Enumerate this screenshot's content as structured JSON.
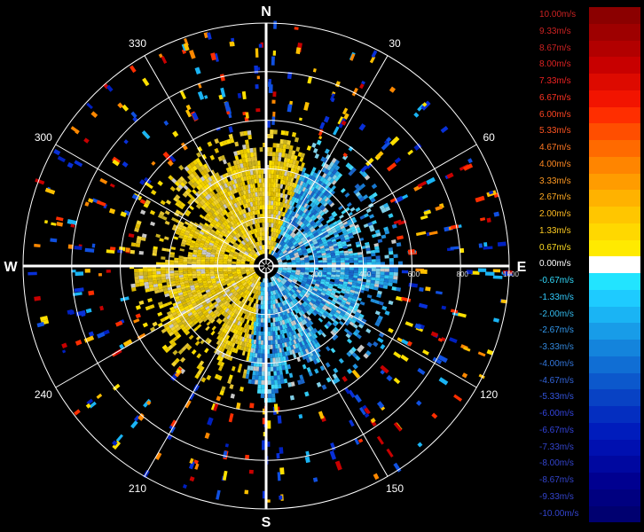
{
  "radar": {
    "cardinals": [
      {
        "label": "N",
        "az": 0
      },
      {
        "label": "E",
        "az": 90
      },
      {
        "label": "S",
        "az": 180
      },
      {
        "label": "W",
        "az": 270
      }
    ],
    "azimuth_labels": [
      {
        "label": "30",
        "az": 30
      },
      {
        "label": "60",
        "az": 60
      },
      {
        "label": "120",
        "az": 120
      },
      {
        "label": "150",
        "az": 150
      },
      {
        "label": "210",
        "az": 210
      },
      {
        "label": "240",
        "az": 240
      },
      {
        "label": "300",
        "az": 300
      },
      {
        "label": "330",
        "az": 330
      }
    ],
    "range_labels": [
      {
        "label": "200",
        "range": 200
      },
      {
        "label": "400",
        "range": 400
      },
      {
        "label": "600",
        "range": 600
      },
      {
        "label": "800",
        "range": 800
      },
      {
        "label": "1000",
        "range": 1000
      }
    ],
    "max_range": 1000
  },
  "legend": {
    "entries": [
      {
        "label": "10.00m/s",
        "color": "#8b0000",
        "text_color": "#cc2222"
      },
      {
        "label": "9.33m/s",
        "color": "#9e0000",
        "text_color": "#cc2222"
      },
      {
        "label": "8.67m/s",
        "color": "#b20000",
        "text_color": "#cc2222"
      },
      {
        "label": "8.00m/s",
        "color": "#c80000",
        "text_color": "#dd2222"
      },
      {
        "label": "7.33m/s",
        "color": "#dd0a00",
        "text_color": "#ee2222"
      },
      {
        "label": "6.67m/s",
        "color": "#f21400",
        "text_color": "#ff3322"
      },
      {
        "label": "6.00m/s",
        "color": "#ff2e00",
        "text_color": "#ff4422"
      },
      {
        "label": "5.33m/s",
        "color": "#ff4e00",
        "text_color": "#ff5522"
      },
      {
        "label": "4.67m/s",
        "color": "#ff6a00",
        "text_color": "#ff7722"
      },
      {
        "label": "4.00m/s",
        "color": "#ff8500",
        "text_color": "#ff8822"
      },
      {
        "label": "3.33m/s",
        "color": "#ff9c00",
        "text_color": "#ff9922"
      },
      {
        "label": "2.67m/s",
        "color": "#ffb200",
        "text_color": "#ffaa22"
      },
      {
        "label": "2.00m/s",
        "color": "#ffc600",
        "text_color": "#ffbb22"
      },
      {
        "label": "1.33m/s",
        "color": "#ffd800",
        "text_color": "#ffcc22"
      },
      {
        "label": "0.67m/s",
        "color": "#ffea00",
        "text_color": "#ffdd22"
      },
      {
        "label": "0.00m/s",
        "color": "#ffffff",
        "text_color": "#ffffff"
      },
      {
        "label": "-0.67m/s",
        "color": "#22e4ff",
        "text_color": "#33ddff"
      },
      {
        "label": "-1.33m/s",
        "color": "#1ecbff",
        "text_color": "#33ccff"
      },
      {
        "label": "-2.00m/s",
        "color": "#1ab4f4",
        "text_color": "#33bbee"
      },
      {
        "label": "-2.67m/s",
        "color": "#189ce8",
        "text_color": "#3399ee"
      },
      {
        "label": "-3.33m/s",
        "color": "#1484dc",
        "text_color": "#3388dd"
      },
      {
        "label": "-4.00m/s",
        "color": "#106ed4",
        "text_color": "#3377dd"
      },
      {
        "label": "-4.67m/s",
        "color": "#0c58cc",
        "text_color": "#3366dd"
      },
      {
        "label": "-5.33m/s",
        "color": "#0842c4",
        "text_color": "#3355dd"
      },
      {
        "label": "-6.00m/s",
        "color": "#042ec0",
        "text_color": "#3344dd"
      },
      {
        "label": "-6.67m/s",
        "color": "#001cbc",
        "text_color": "#3344dd"
      },
      {
        "label": "-7.33m/s",
        "color": "#0010b0",
        "text_color": "#3344cc"
      },
      {
        "label": "-8.00m/s",
        "color": "#0008a0",
        "text_color": "#3344cc"
      },
      {
        "label": "-8.67m/s",
        "color": "#000090",
        "text_color": "#3344cc"
      },
      {
        "label": "-9.33m/s",
        "color": "#000080",
        "text_color": "#3344cc"
      },
      {
        "label": "-10.00m/s",
        "color": "#000070",
        "text_color": "#3344cc"
      }
    ]
  }
}
